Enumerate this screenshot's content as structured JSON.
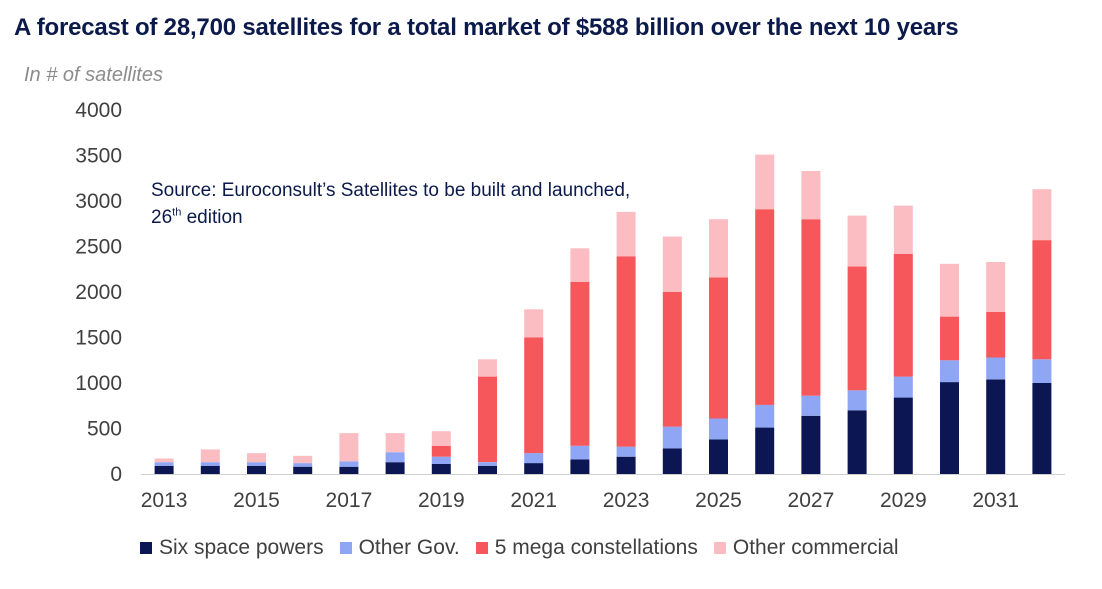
{
  "chart_data": {
    "type": "bar",
    "stacked": true,
    "title": "A forecast of 28,700 satellites for a total market of $588 billion over the next 10 years",
    "ylabel": "In # of satellites",
    "annotation": {
      "text": "Source: Euroconsult’s Satellites to be built and launched,",
      "line2_prefix": "26",
      "line2_sup": "th",
      "line2_suffix": " edition"
    },
    "ylim": [
      0,
      4000
    ],
    "yticks": [
      0,
      500,
      1000,
      1500,
      2000,
      2500,
      3000,
      3500,
      4000
    ],
    "categories": [
      "2013",
      "2014",
      "2015",
      "2016",
      "2017",
      "2018",
      "2019",
      "2020",
      "2021",
      "2022",
      "2023",
      "2024",
      "2025",
      "2026",
      "2027",
      "2028",
      "2029",
      "2030",
      "2031",
      "2032"
    ],
    "xtick_labels": [
      "2013",
      "",
      "2015",
      "",
      "2017",
      "",
      "2019",
      "",
      "2021",
      "",
      "2023",
      "",
      "2025",
      "",
      "2027",
      "",
      "2029",
      "",
      "2031",
      ""
    ],
    "legend_position": "bottom",
    "series": [
      {
        "name": "Six space powers",
        "color": "#0c1652",
        "values": [
          90,
          90,
          90,
          80,
          80,
          130,
          110,
          90,
          120,
          160,
          190,
          280,
          380,
          510,
          640,
          700,
          840,
          1010,
          1040,
          1000
        ]
      },
      {
        "name": "Other Gov.",
        "color": "#8fa6f5",
        "values": [
          40,
          40,
          40,
          40,
          60,
          110,
          80,
          40,
          110,
          150,
          110,
          240,
          230,
          250,
          220,
          220,
          230,
          240,
          240,
          260
        ]
      },
      {
        "name": "5 mega constellations",
        "color": "#f5575a",
        "values": [
          0,
          0,
          0,
          0,
          0,
          0,
          120,
          940,
          1270,
          1800,
          2090,
          1480,
          1550,
          2150,
          1940,
          1360,
          1350,
          480,
          500,
          1310
        ]
      },
      {
        "name": "Other commercial",
        "color": "#fbbdc2",
        "values": [
          40,
          140,
          100,
          80,
          310,
          210,
          160,
          190,
          310,
          370,
          490,
          610,
          640,
          600,
          530,
          560,
          530,
          580,
          550,
          560
        ]
      }
    ]
  }
}
